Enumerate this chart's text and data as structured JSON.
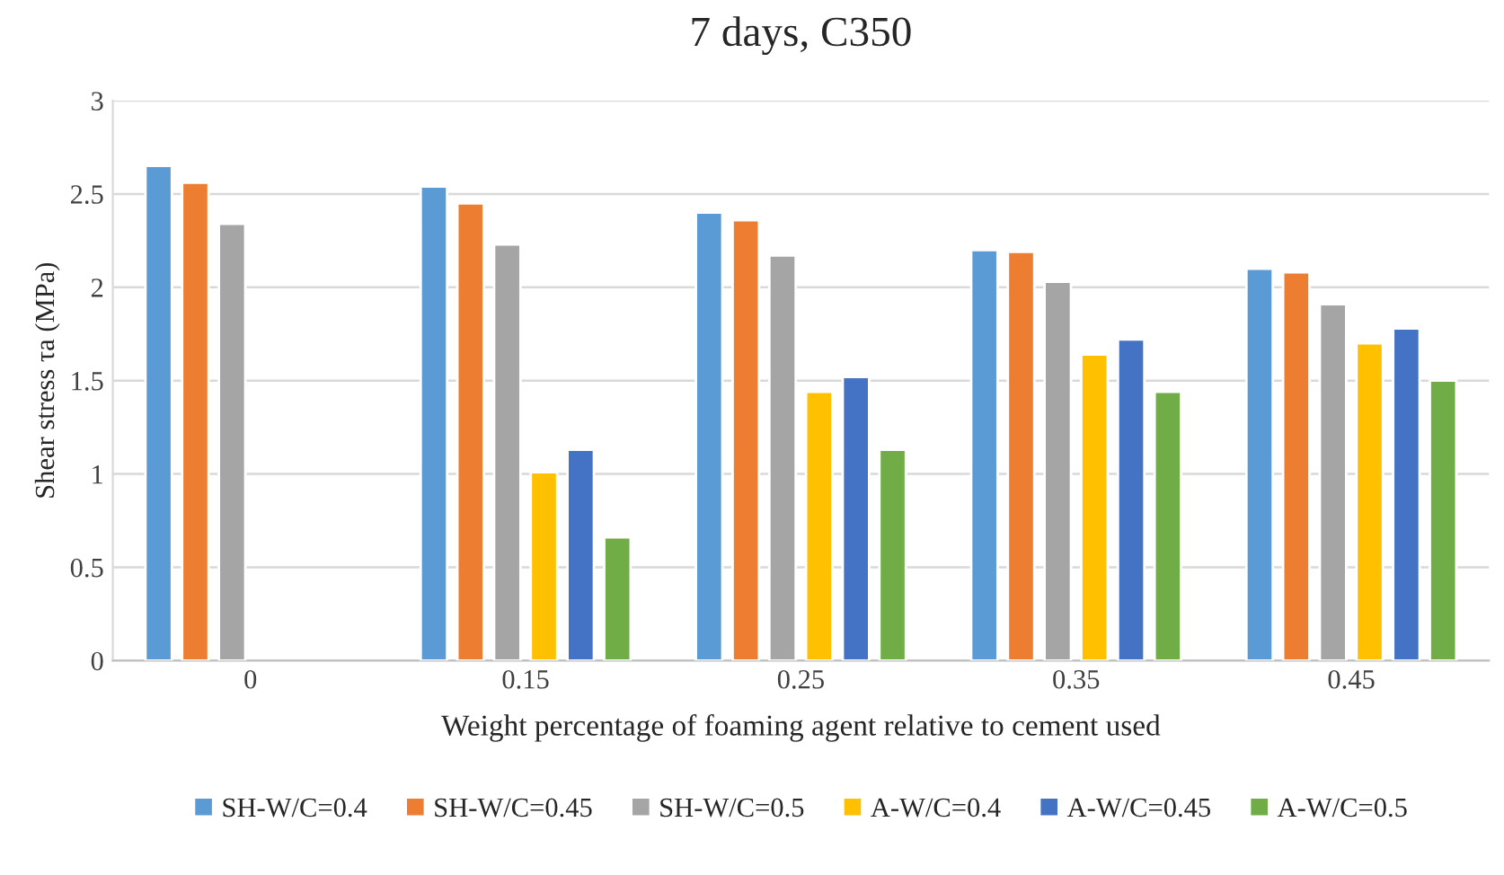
{
  "chart_data": {
    "type": "bar",
    "title": "7 days, C350",
    "xlabel": "Weight percentage of foaming agent relative to cement used",
    "ylabel": "Shear stress τa (MPa)",
    "categories": [
      "0",
      "0.15",
      "0.25",
      "0.35",
      "0.45"
    ],
    "series": [
      {
        "name": "SH-W/C=0.4",
        "color": "#5b9bd5",
        "values": [
          2.65,
          2.54,
          2.4,
          2.2,
          2.1
        ]
      },
      {
        "name": "SH-W/C=0.45",
        "color": "#ed7d31",
        "values": [
          2.56,
          2.45,
          2.36,
          2.19,
          2.08
        ]
      },
      {
        "name": "SH-W/C=0.5",
        "color": "#a5a5a5",
        "values": [
          2.34,
          2.23,
          2.17,
          2.03,
          1.91
        ]
      },
      {
        "name": "A-W/C=0.4",
        "color": "#ffc000",
        "values": [
          null,
          1.01,
          1.44,
          1.64,
          1.7
        ]
      },
      {
        "name": "A-W/C=0.45",
        "color": "#4472c4",
        "values": [
          null,
          1.13,
          1.52,
          1.72,
          1.78
        ]
      },
      {
        "name": "A-W/C=0.5",
        "color": "#70ad47",
        "values": [
          null,
          0.66,
          1.13,
          1.44,
          1.5
        ]
      }
    ],
    "ylim": [
      0,
      3
    ],
    "yticks": [
      0,
      0.5,
      1,
      1.5,
      2,
      2.5,
      3
    ],
    "grid": "y",
    "legend": "bottom"
  }
}
